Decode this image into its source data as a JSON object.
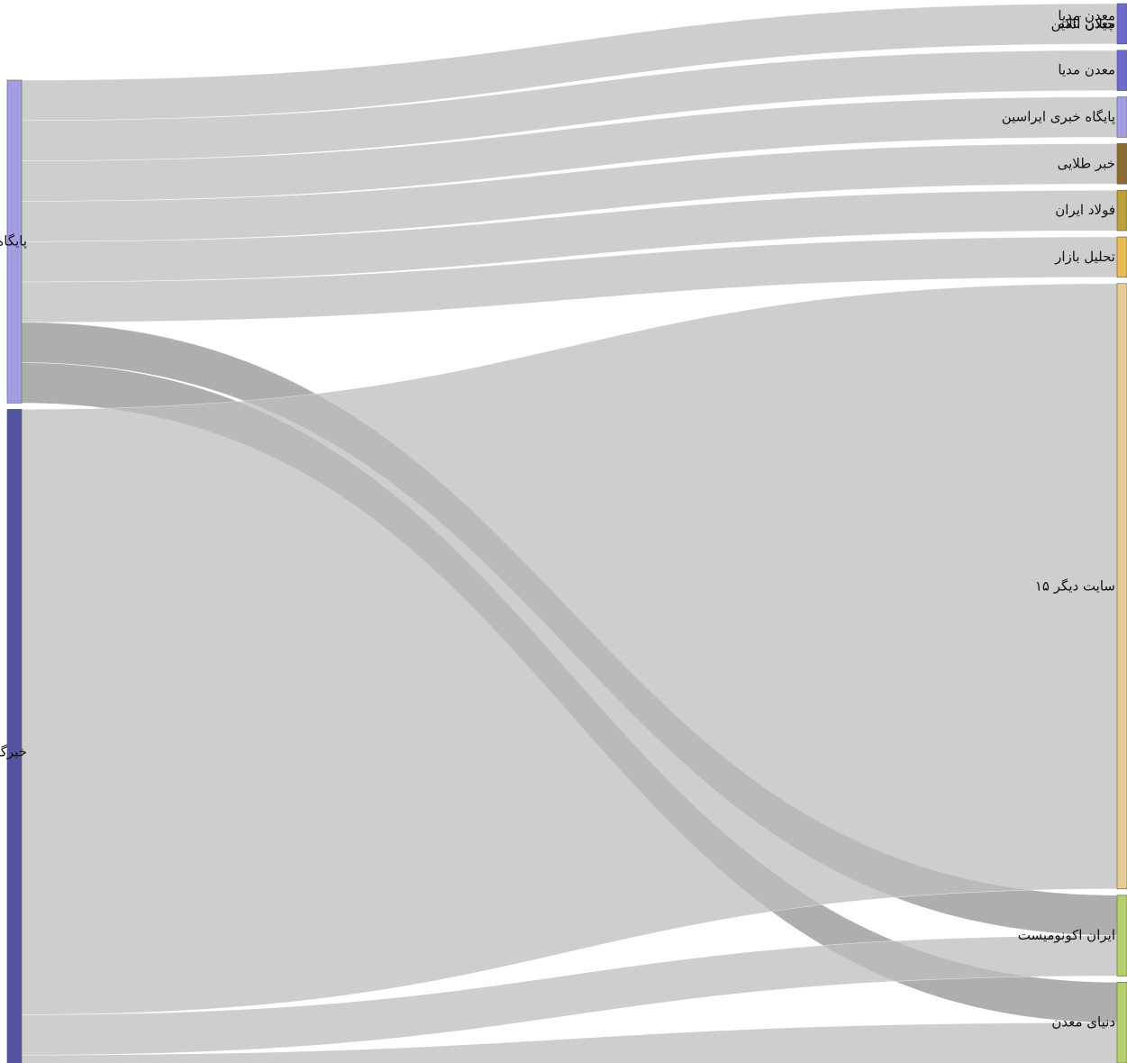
{
  "chart_data": {
    "type": "sankey",
    "title": "",
    "sources": [
      {
        "name": "پایگاه خبری بازار سرمایه ایران",
        "color": "#a39ee3"
      },
      {
        "name": "خبرگزاری تسنیم",
        "color": "#5353a3"
      }
    ],
    "targets": [
      {
        "name": "معدن مدیا",
        "color": "#5353a3"
      },
      {
        "name": "چیلان آنلاین",
        "color": "#5353a3"
      },
      {
        "name": "معدن نامه",
        "color": "#6b6bcf"
      },
      {
        "name": "معدن مدیا",
        "color": "#6b6bcf"
      },
      {
        "name": "پایگاه خبری ایراسین",
        "color": "#a39ee3"
      },
      {
        "name": "خبر طلایی",
        "color": "#8c6d31"
      },
      {
        "name": "فولاد ایران",
        "color": "#bd9e39"
      },
      {
        "name": "تحلیل بازار",
        "color": "#e7ba52"
      },
      {
        "name": "۱۵ سایت دیگر",
        "color": "#e7cb94"
      },
      {
        "name": "ایران اکونومیست",
        "color": "#b5cf6b"
      },
      {
        "name": "دنیای معدن",
        "color": "#b5cf6b"
      }
    ],
    "links": [
      {
        "source": 0,
        "target": 2,
        "value": 2,
        "highlight": false
      },
      {
        "source": 0,
        "target": 3,
        "value": 2,
        "highlight": false
      },
      {
        "source": 0,
        "target": 4,
        "value": 2,
        "highlight": false
      },
      {
        "source": 0,
        "target": 5,
        "value": 2,
        "highlight": false
      },
      {
        "source": 0,
        "target": 6,
        "value": 2,
        "highlight": false
      },
      {
        "source": 0,
        "target": 7,
        "value": 2,
        "highlight": false
      },
      {
        "source": 0,
        "target": 9,
        "value": 2,
        "highlight": true
      },
      {
        "source": 0,
        "target": 10,
        "value": 2,
        "highlight": true
      },
      {
        "source": 1,
        "target": 8,
        "value": 30,
        "highlight": false
      },
      {
        "source": 1,
        "target": 9,
        "value": 2,
        "highlight": false
      },
      {
        "source": 1,
        "target": 10,
        "value": 2,
        "highlight": false
      }
    ]
  }
}
